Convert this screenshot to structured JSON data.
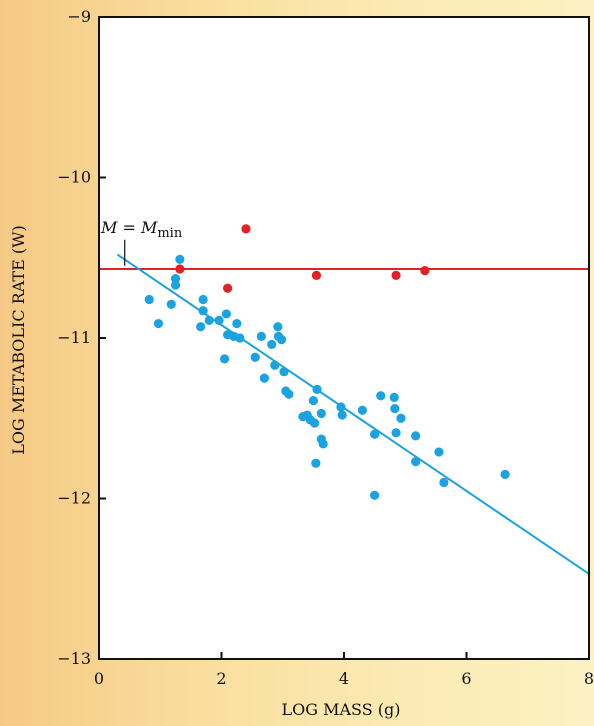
{
  "chart_data": {
    "type": "scatter",
    "xlabel": "LOG MASS (g)",
    "ylabel": "LOG METABOLIC RATE (W)",
    "xlim": [
      0,
      8
    ],
    "ylim": [
      -13,
      -9
    ],
    "x_ticks": [
      0,
      2,
      4,
      6,
      8
    ],
    "y_ticks": [
      -13,
      -12,
      -11,
      -10,
      -9
    ],
    "x_tick_labels": [
      "0",
      "2",
      "4",
      "6",
      "8"
    ],
    "y_tick_labels": [
      "−13",
      "−12",
      "−11",
      "−10",
      "−9"
    ],
    "grid": false,
    "plot_background": "#ffffff",
    "page_background": "#f9dc9b",
    "annotation": {
      "text_m": "M",
      "text_eq": " = ",
      "text_mm": "M",
      "text_sub": "min",
      "x": 0.42,
      "y": -10.55
    },
    "series": [
      {
        "color": "#1aa3e0",
        "points": [
          [
            0.82,
            -10.76
          ],
          [
            0.97,
            -10.91
          ],
          [
            1.18,
            -10.79
          ],
          [
            1.25,
            -10.63
          ],
          [
            1.25,
            -10.67
          ],
          [
            1.32,
            -10.51
          ],
          [
            1.66,
            -10.93
          ],
          [
            1.7,
            -10.76
          ],
          [
            1.7,
            -10.83
          ],
          [
            1.8,
            -10.89
          ],
          [
            1.96,
            -10.89
          ],
          [
            2.05,
            -11.13
          ],
          [
            2.08,
            -10.85
          ],
          [
            2.1,
            -10.98
          ],
          [
            2.2,
            -10.99
          ],
          [
            2.25,
            -10.91
          ],
          [
            2.3,
            -11.0
          ],
          [
            2.55,
            -11.12
          ],
          [
            2.65,
            -10.99
          ],
          [
            2.7,
            -11.25
          ],
          [
            2.82,
            -11.04
          ],
          [
            2.87,
            -11.17
          ],
          [
            2.92,
            -10.93
          ],
          [
            2.93,
            -10.99
          ],
          [
            2.98,
            -11.01
          ],
          [
            3.02,
            -11.21
          ],
          [
            3.05,
            -11.33
          ],
          [
            3.1,
            -11.35
          ],
          [
            3.33,
            -11.49
          ],
          [
            3.4,
            -11.48
          ],
          [
            3.45,
            -11.51
          ],
          [
            3.5,
            -11.39
          ],
          [
            3.52,
            -11.53
          ],
          [
            3.56,
            -11.32
          ],
          [
            3.54,
            -11.78
          ],
          [
            3.63,
            -11.47
          ],
          [
            3.63,
            -11.63
          ],
          [
            3.66,
            -11.66
          ],
          [
            3.95,
            -11.43
          ],
          [
            3.97,
            -11.48
          ],
          [
            4.3,
            -11.45
          ],
          [
            4.5,
            -11.6
          ],
          [
            4.5,
            -11.98
          ],
          [
            4.6,
            -11.36
          ],
          [
            4.82,
            -11.37
          ],
          [
            4.83,
            -11.44
          ],
          [
            4.85,
            -11.59
          ],
          [
            4.93,
            -11.5
          ],
          [
            5.17,
            -11.61
          ],
          [
            5.17,
            -11.77
          ],
          [
            5.55,
            -11.71
          ],
          [
            5.63,
            -11.9
          ],
          [
            6.63,
            -11.85
          ]
        ]
      },
      {
        "color": "#e32026",
        "points": [
          [
            1.32,
            -10.57
          ],
          [
            2.1,
            -10.69
          ],
          [
            2.4,
            -10.32
          ],
          [
            3.55,
            -10.61
          ],
          [
            4.85,
            -10.61
          ],
          [
            5.32,
            -10.58
          ]
        ]
      }
    ],
    "lines": [
      {
        "color": "#e32026",
        "x": [
          0.0,
          8.0
        ],
        "y": [
          -10.57,
          -10.57
        ]
      },
      {
        "color": "#1aa3e0",
        "x": [
          0.3,
          8.0
        ],
        "y": [
          -10.48,
          -12.47
        ]
      }
    ]
  }
}
